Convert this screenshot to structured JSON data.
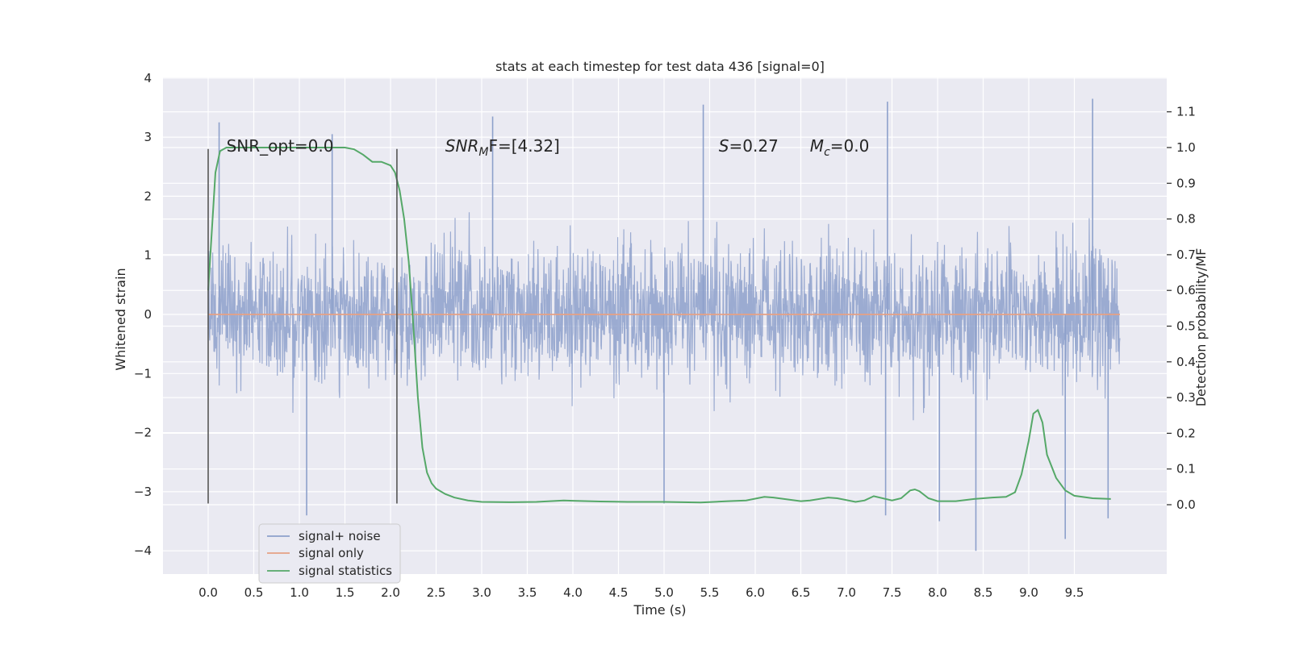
{
  "chart_data": {
    "type": "line",
    "title": "stats at each timestep for test data 436 [signal=0]",
    "xlabel": "Time (s)",
    "ylabel": "Whitened strain",
    "y2label": "Detection probability/MF",
    "xlim": [
      -0.5,
      10.5
    ],
    "ylim": [
      -4.4,
      4.0
    ],
    "y2lim": [
      -0.2,
      1.2
    ],
    "xticks": [
      0.0,
      0.5,
      1.0,
      1.5,
      2.0,
      2.5,
      3.0,
      3.5,
      4.0,
      4.5,
      5.0,
      5.5,
      6.0,
      6.5,
      7.0,
      7.5,
      8.0,
      8.5,
      9.0,
      9.5
    ],
    "xtick_labels": [
      "0.0",
      "0.5",
      "1.0",
      "1.5",
      "2.0",
      "2.5",
      "3.0",
      "3.5",
      "4.0",
      "4.5",
      "5.0",
      "5.5",
      "6.0",
      "6.5",
      "7.0",
      "7.5",
      "8.0",
      "8.5",
      "9.0",
      "9.5"
    ],
    "yticks": [
      4,
      3,
      2,
      1,
      0,
      -1,
      -2,
      -3,
      -4
    ],
    "ytick_labels": [
      "4",
      "3",
      "2",
      "1",
      "0",
      "−1",
      "−2",
      "−3",
      "−4"
    ],
    "y2ticks": [
      1.1,
      1.0,
      0.9,
      0.8,
      0.7,
      0.6,
      0.5,
      0.4,
      0.3,
      0.2,
      0.1,
      0.0
    ],
    "y2tick_labels": [
      "1.1",
      "1.0",
      "0.9",
      "0.8",
      "0.7",
      "0.6",
      "0.5",
      "0.4",
      "0.3",
      "0.2",
      "0.1",
      "0.0"
    ],
    "grid": true,
    "legend_position": "lower-left",
    "series": [
      {
        "name": "signal+ noise",
        "axis": "left",
        "color": "#8da0cb",
        "x_range": [
          0.0,
          10.0
        ],
        "typical_band": [
          -1.6,
          1.6
        ],
        "y_min": -4.0,
        "y_max": 3.7,
        "peaks": [
          {
            "x": 0.12,
            "y": 3.25
          },
          {
            "x": 1.36,
            "y": 3.05
          },
          {
            "x": 3.12,
            "y": 3.35
          },
          {
            "x": 5.43,
            "y": 3.55
          },
          {
            "x": 7.45,
            "y": 3.6
          },
          {
            "x": 9.7,
            "y": 3.65
          },
          {
            "x": 1.08,
            "y": -3.4
          },
          {
            "x": 5.0,
            "y": -3.2
          },
          {
            "x": 7.43,
            "y": -3.4
          },
          {
            "x": 8.02,
            "y": -3.5
          },
          {
            "x": 8.42,
            "y": -4.0
          },
          {
            "x": 9.4,
            "y": -3.8
          },
          {
            "x": 9.87,
            "y": -3.45
          }
        ]
      },
      {
        "name": "signal only",
        "axis": "left",
        "color": "#e5a085",
        "x": [
          0.0,
          10.0
        ],
        "y": [
          0.0,
          0.0
        ]
      },
      {
        "name": "signal statistics",
        "axis": "right",
        "color": "#55a868",
        "x": [
          0.0,
          0.08,
          0.13,
          0.2,
          0.4,
          0.8,
          1.2,
          1.5,
          1.6,
          1.7,
          1.8,
          1.9,
          2.0,
          2.05,
          2.1,
          2.15,
          2.2,
          2.25,
          2.3,
          2.35,
          2.4,
          2.45,
          2.5,
          2.6,
          2.7,
          2.85,
          3.0,
          3.3,
          3.6,
          3.9,
          4.0,
          4.3,
          4.6,
          5.0,
          5.4,
          5.7,
          5.9,
          6.1,
          6.2,
          6.5,
          6.6,
          6.8,
          6.9,
          7.1,
          7.2,
          7.3,
          7.5,
          7.6,
          7.7,
          7.75,
          7.8,
          7.9,
          8.0,
          8.2,
          8.4,
          8.6,
          8.75,
          8.85,
          8.92,
          9.0,
          9.05,
          9.1,
          9.15,
          9.2,
          9.3,
          9.4,
          9.5,
          9.7,
          9.9
        ],
        "y": [
          0.6,
          0.93,
          0.99,
          1.0,
          1.0,
          1.0,
          1.0,
          1.0,
          0.995,
          0.98,
          0.96,
          0.96,
          0.95,
          0.93,
          0.88,
          0.8,
          0.68,
          0.5,
          0.3,
          0.16,
          0.09,
          0.06,
          0.045,
          0.03,
          0.02,
          0.012,
          0.008,
          0.007,
          0.008,
          0.012,
          0.011,
          0.009,
          0.008,
          0.008,
          0.006,
          0.01,
          0.012,
          0.022,
          0.02,
          0.01,
          0.012,
          0.02,
          0.018,
          0.008,
          0.012,
          0.024,
          0.012,
          0.018,
          0.04,
          0.043,
          0.038,
          0.018,
          0.01,
          0.01,
          0.016,
          0.02,
          0.022,
          0.035,
          0.085,
          0.18,
          0.255,
          0.265,
          0.23,
          0.14,
          0.075,
          0.04,
          0.025,
          0.018,
          0.016
        ]
      }
    ],
    "vertical_markers": [
      {
        "x": 0.0,
        "y_range": [
          -3.2,
          2.8
        ]
      },
      {
        "x": 2.07,
        "y_range": [
          -3.2,
          2.8
        ]
      }
    ],
    "annotations": [
      {
        "text": "SNR_opt=0.0",
        "x": 0.2,
        "y": 2.85,
        "italic": false
      },
      {
        "text": "SNR",
        "sub": "M",
        "tail": "F=[4.32]",
        "x": 2.6,
        "y": 2.85,
        "italic": true
      },
      {
        "text": "S",
        "tail": "=0.27",
        "x": 5.6,
        "y": 2.85,
        "italic": true
      },
      {
        "text": "M",
        "sub": "c",
        "tail": "=0.0",
        "x": 6.6,
        "y": 2.85,
        "italic": true
      }
    ]
  }
}
